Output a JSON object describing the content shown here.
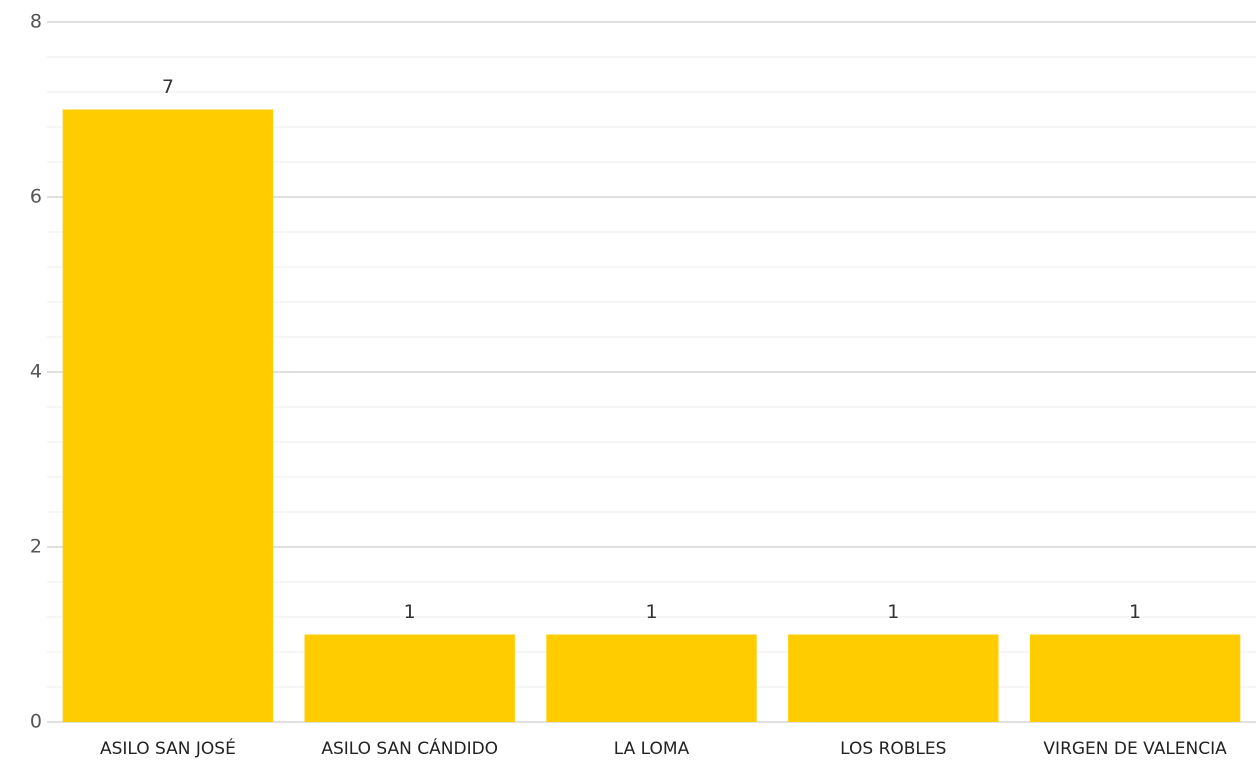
{
  "chart_data": {
    "type": "bar",
    "categories": [
      "ASILO SAN JOSÉ",
      "ASILO SAN CÁNDIDO",
      "LA LOMA",
      "LOS ROBLES",
      "VIRGEN DE VALENCIA"
    ],
    "values": [
      7,
      1,
      1,
      1,
      1
    ],
    "color": "#ffcc00",
    "ylim": [
      0,
      8
    ],
    "yticks": [
      0,
      2,
      4,
      6,
      8
    ],
    "grid": true
  }
}
